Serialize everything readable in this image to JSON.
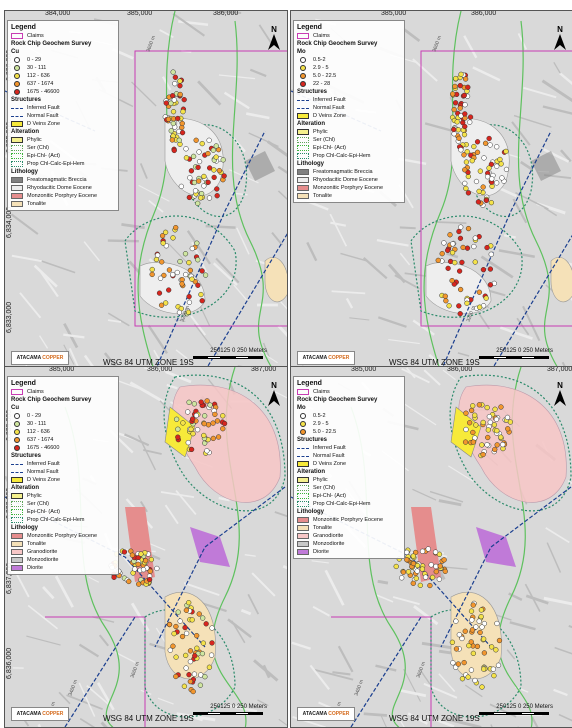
{
  "colors": {
    "claims": "#c83cb4",
    "fault": "#1b3f8f",
    "veins": "#f7ea3a",
    "phylic": "#f4f08c",
    "ser": "#5fa35a",
    "epi": "#3cb33c",
    "prop": "#2a8a6a",
    "breccia": "#808080",
    "dome": "#eeeeee",
    "porphyry": "#e58d8d",
    "tonalite": "#f5e1b8",
    "granodiorite": "#f7c6c6",
    "monzodiorite": "#c8c8c8",
    "diorite": "#c07ad8"
  },
  "panels": [
    {
      "x_ticks": [
        "384,000",
        "385,000",
        "386,000"
      ],
      "y_ticks": [
        "6,836,000",
        "6,835,000",
        "6,834,000",
        "6,833,000"
      ],
      "legend": {
        "title": "Legend",
        "claims": "Claims",
        "survey": "Rock Chip Geochem Survey",
        "element": "Cu",
        "classes": [
          {
            "label": "0 - 29",
            "color": "#ffffff"
          },
          {
            "label": "30 - 111",
            "color": "#cfe6a0"
          },
          {
            "label": "112 - 636",
            "color": "#f4e24a"
          },
          {
            "label": "637 - 1674",
            "color": "#f2962e"
          },
          {
            "label": "1675 - 46600",
            "color": "#d7261e"
          }
        ],
        "structures_title": "Structures",
        "structures": [
          "Inferred Fault",
          "Normal Fault",
          "D Veins Zone"
        ],
        "alteration_title": "Alteration",
        "alteration": [
          "Phylic",
          "Ser (Chl)",
          "Epi-Chl- (Act)",
          "Prop Chl-Calc-Epi-Hem"
        ],
        "lithology_title": "Lithology",
        "lithology": [
          "Freatomagmatic Breccia",
          "Rhyodacitic Dome Eocene",
          "Monzonitic Porphyry Eocene",
          "Tonalite"
        ]
      },
      "scale": "250125  0          250 Meters",
      "utm": "WSG 84 UTM ZONE 19S",
      "logo": [
        "ATACAMA",
        "COPPER"
      ],
      "north": "N",
      "contours": [
        "3600 m",
        "3200 m"
      ]
    },
    {
      "x_ticks": [
        "385,000",
        "386,000"
      ],
      "y_ticks": [],
      "legend": {
        "title": "Legend",
        "claims": "Claims",
        "survey": "Rock Chip Geochem Survey",
        "element": "Mo",
        "classes": [
          {
            "label": "0.5-2",
            "color": "#ffffff"
          },
          {
            "label": "2.9 - 5",
            "color": "#f4e24a"
          },
          {
            "label": "5.0 - 22.5",
            "color": "#f2962e"
          },
          {
            "label": "22 - 28",
            "color": "#d7261e"
          }
        ],
        "structures_title": "Structures",
        "structures": [
          "Inferred Fault",
          "Normal Fault",
          "D Veins Zone"
        ],
        "alteration_title": "Alteration",
        "alteration": [
          "Phylic",
          "Ser (Chl)",
          "Epi-Chl- (Act)",
          "Prop Chl-Calc-Epi-Hem"
        ],
        "lithology_title": "Lithology",
        "lithology": [
          "Freatomagmatic Breccia",
          "Rhyodacitic Dome Eocene",
          "Monzonitic Porphyry Eocene",
          "Tonalite"
        ]
      },
      "scale": "250125  0          250 Meters",
      "utm": "WSG 84 UTM ZONE 19S",
      "logo": [
        "ATACAMA",
        "COPPER"
      ],
      "north": "N",
      "contours": [
        "3600 m",
        "3200 m"
      ]
    },
    {
      "x_ticks": [
        "385,000",
        "386,000",
        "387,000"
      ],
      "y_ticks": [
        "6,839,000",
        "6,838,000",
        "6,837,000",
        "6,836,000"
      ],
      "legend": {
        "title": "Legend",
        "claims": "Claims",
        "survey": "Rock Chip Geochem Survey",
        "element": "Cu",
        "classes": [
          {
            "label": "0 - 29",
            "color": "#ffffff"
          },
          {
            "label": "30 - 111",
            "color": "#cfe6a0"
          },
          {
            "label": "112 - 636",
            "color": "#f4e24a"
          },
          {
            "label": "637 - 1674",
            "color": "#f2962e"
          },
          {
            "label": "1675 - 46600",
            "color": "#d7261e"
          }
        ],
        "structures_title": "Structures",
        "structures": [
          "Inferred Fault",
          "Normal Fault",
          "D Veins Zone"
        ],
        "alteration_title": "Alteration",
        "alteration": [
          "Phylic",
          "Ser (Chl)",
          "Epi-Chl- (Act)",
          "Prop Chl-Calc-Epi-Hem"
        ],
        "lithology_title": "Lithology",
        "lithology": [
          "Monzonitic Porphyry Eocene",
          "Tonalite",
          "Granodiorite",
          "Monzodiorite",
          "Diorite"
        ]
      },
      "scale": "250125  0          250 Meters",
      "utm": "WSG 84 UTM ZONE 19S",
      "logo": [
        "ATACAMA",
        "COPPER"
      ],
      "north": "N",
      "contours": [
        "3600 m",
        "3400 m",
        "3600 m"
      ]
    },
    {
      "x_ticks": [
        "385,000",
        "386,000",
        "387,000"
      ],
      "y_ticks": [],
      "legend": {
        "title": "Legend",
        "claims": "Claims",
        "survey": "Rock Chip Geochem Survey",
        "element": "Mo",
        "classes": [
          {
            "label": "0.5-2",
            "color": "#ffffff"
          },
          {
            "label": "2.9 - 5",
            "color": "#f4e24a"
          },
          {
            "label": "5.0 - 22.5",
            "color": "#f2962e"
          }
        ],
        "structures_title": "Structures",
        "structures": [
          "Inferred Fault",
          "Normal Fault",
          "D Veins Zone"
        ],
        "alteration_title": "Alteration",
        "alteration": [
          "Phylic",
          "Ser (Chl)",
          "Epi-Chl- (Act)",
          "Prop Chl-Calc-Epi-Hem"
        ],
        "lithology_title": "Lithology",
        "lithology": [
          "Monzonitic Porphyry Eocene",
          "Tonalite",
          "Granodiorite",
          "Monzodiorite",
          "Diorite"
        ]
      },
      "scale": "250125  0          250 Meters",
      "utm": "WSG 84 UTM ZONE 19S",
      "logo": [
        "ATACAMA",
        "COPPER"
      ],
      "north": "N",
      "contours": [
        "3600 m",
        "3400 m",
        "3600 m"
      ]
    }
  ]
}
